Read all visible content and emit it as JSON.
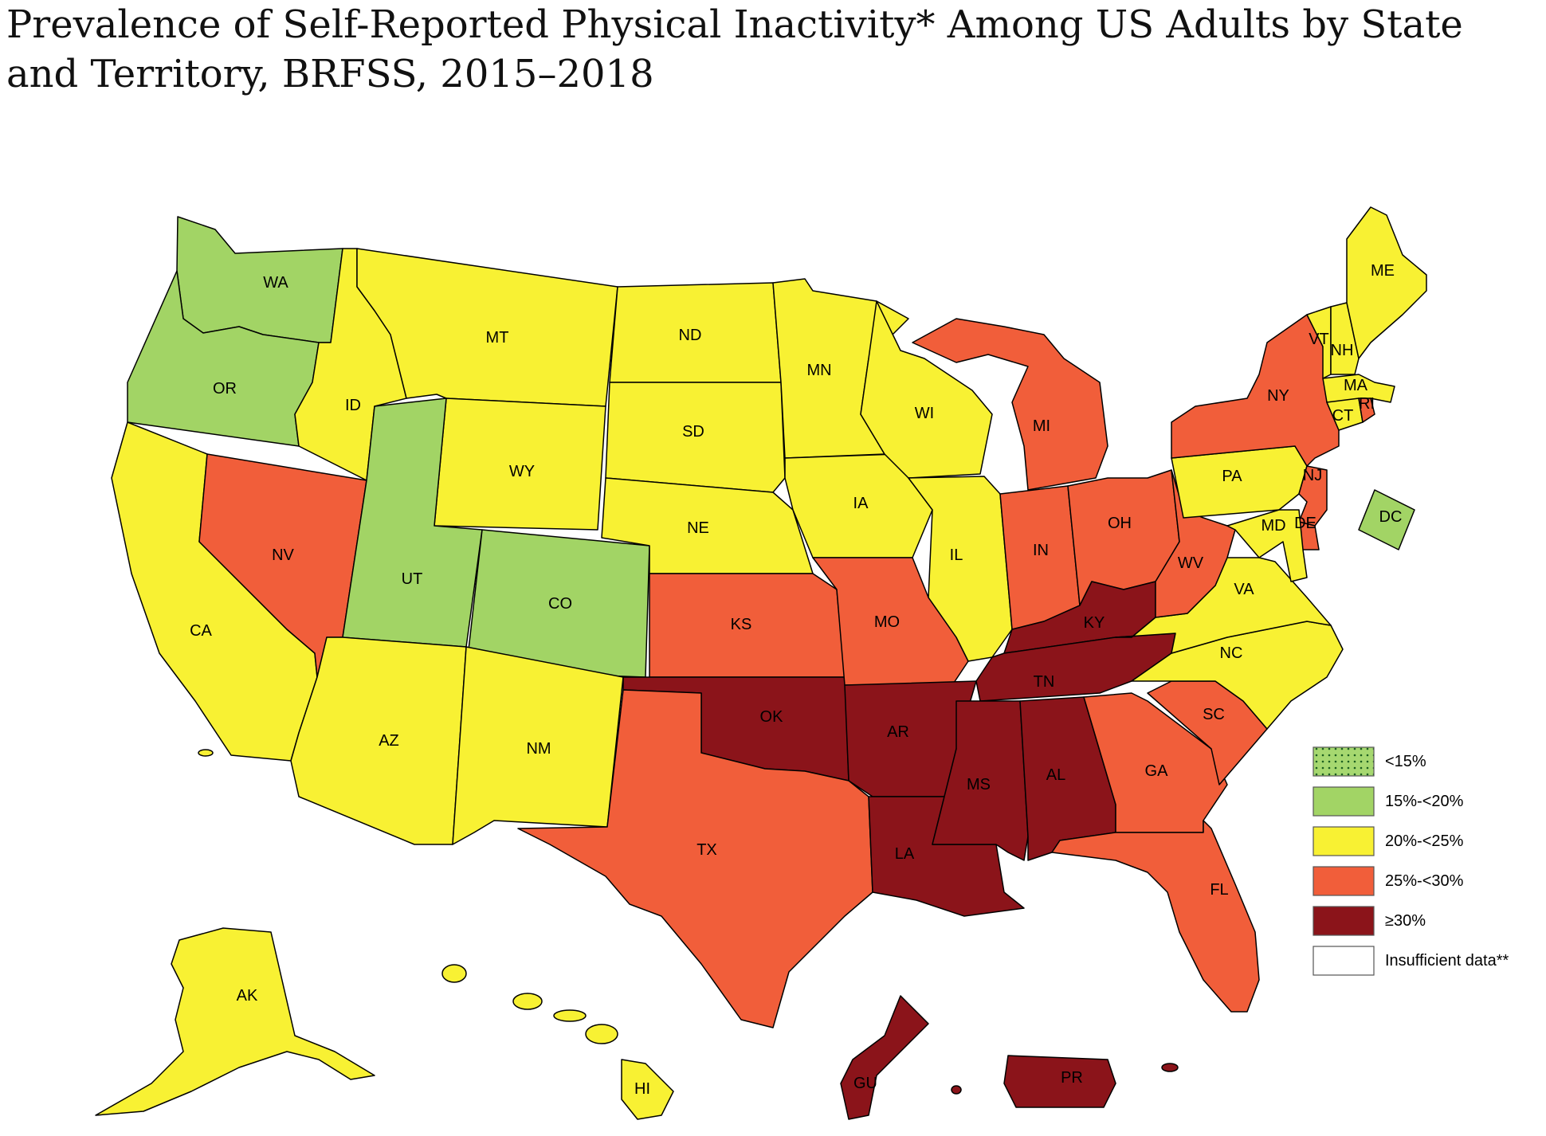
{
  "title": "Prevalence of Self-Reported Physical Inactivity* Among US Adults by State and Territory, BRFSS, 2015–2018",
  "colors": {
    "lt15": "#a6d870",
    "c15_20": "#a2d465",
    "c20_25": "#f8f133",
    "c25_30": "#f15e3a",
    "ge30": "#8b141a",
    "insufficient": "#ffffff"
  },
  "legend": [
    {
      "key": "lt15",
      "label": "<15%",
      "pattern": "dots"
    },
    {
      "key": "c15_20",
      "label": "15%-<20%"
    },
    {
      "key": "c20_25",
      "label": "20%-<25%"
    },
    {
      "key": "c25_30",
      "label": "25%-<30%"
    },
    {
      "key": "ge30",
      "label": "≥30%"
    },
    {
      "key": "insufficient",
      "label": "Insufficient data**"
    }
  ],
  "states": {
    "WA": {
      "label": "WA",
      "cat": "c15_20"
    },
    "OR": {
      "label": "OR",
      "cat": "c15_20"
    },
    "CA": {
      "label": "CA",
      "cat": "c20_25"
    },
    "NV": {
      "label": "NV",
      "cat": "c25_30"
    },
    "ID": {
      "label": "ID",
      "cat": "c20_25"
    },
    "MT": {
      "label": "MT",
      "cat": "c20_25"
    },
    "WY": {
      "label": "WY",
      "cat": "c20_25"
    },
    "UT": {
      "label": "UT",
      "cat": "c15_20"
    },
    "CO": {
      "label": "CO",
      "cat": "c15_20"
    },
    "AZ": {
      "label": "AZ",
      "cat": "c20_25"
    },
    "NM": {
      "label": "NM",
      "cat": "c20_25"
    },
    "ND": {
      "label": "ND",
      "cat": "c20_25"
    },
    "SD": {
      "label": "SD",
      "cat": "c20_25"
    },
    "NE": {
      "label": "NE",
      "cat": "c20_25"
    },
    "KS": {
      "label": "KS",
      "cat": "c25_30"
    },
    "OK": {
      "label": "OK",
      "cat": "ge30"
    },
    "TX": {
      "label": "TX",
      "cat": "c25_30"
    },
    "MN": {
      "label": "MN",
      "cat": "c20_25"
    },
    "IA": {
      "label": "IA",
      "cat": "c20_25"
    },
    "MO": {
      "label": "MO",
      "cat": "c25_30"
    },
    "AR": {
      "label": "AR",
      "cat": "ge30"
    },
    "LA": {
      "label": "LA",
      "cat": "ge30"
    },
    "WI": {
      "label": "WI",
      "cat": "c20_25"
    },
    "IL": {
      "label": "IL",
      "cat": "c20_25"
    },
    "MI": {
      "label": "MI",
      "cat": "c25_30"
    },
    "IN": {
      "label": "IN",
      "cat": "c25_30"
    },
    "OH": {
      "label": "OH",
      "cat": "c25_30"
    },
    "KY": {
      "label": "KY",
      "cat": "ge30"
    },
    "TN": {
      "label": "TN",
      "cat": "ge30"
    },
    "MS": {
      "label": "MS",
      "cat": "ge30"
    },
    "AL": {
      "label": "AL",
      "cat": "ge30"
    },
    "GA": {
      "label": "GA",
      "cat": "c25_30"
    },
    "FL": {
      "label": "FL",
      "cat": "c25_30"
    },
    "SC": {
      "label": "SC",
      "cat": "c25_30"
    },
    "NC": {
      "label": "NC",
      "cat": "c20_25"
    },
    "VA": {
      "label": "VA",
      "cat": "c20_25"
    },
    "WV": {
      "label": "WV",
      "cat": "c25_30"
    },
    "PA": {
      "label": "PA",
      "cat": "c20_25"
    },
    "NY": {
      "label": "NY",
      "cat": "c25_30"
    },
    "NJ": {
      "label": "NJ",
      "cat": "c25_30"
    },
    "DE": {
      "label": "DE",
      "cat": "c25_30"
    },
    "MD": {
      "label": "MD",
      "cat": "c20_25"
    },
    "DC": {
      "label": "DC",
      "cat": "c15_20"
    },
    "VT": {
      "label": "VT",
      "cat": "c20_25"
    },
    "NH": {
      "label": "NH",
      "cat": "c20_25"
    },
    "ME": {
      "label": "ME",
      "cat": "c20_25"
    },
    "MA": {
      "label": "MA",
      "cat": "c20_25"
    },
    "CT": {
      "label": "CT",
      "cat": "c20_25"
    },
    "RI": {
      "label": "RI",
      "cat": "c25_30"
    },
    "AK": {
      "label": "AK",
      "cat": "c20_25"
    },
    "HI": {
      "label": "HI",
      "cat": "c20_25"
    },
    "GU": {
      "label": "GU",
      "cat": "ge30"
    },
    "PR": {
      "label": "PR",
      "cat": "ge30"
    }
  }
}
